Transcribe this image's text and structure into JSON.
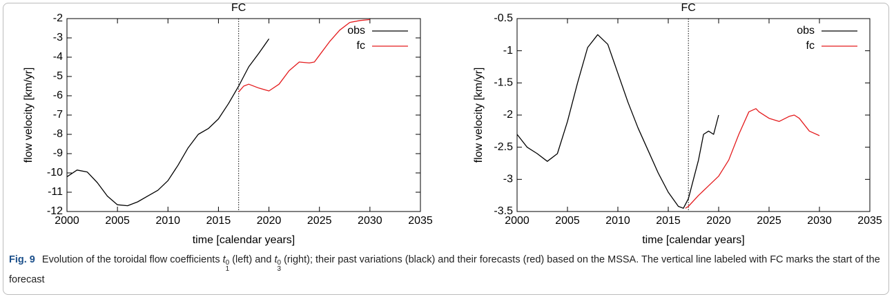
{
  "chart_data": [
    {
      "type": "line",
      "xlabel": "time [calendar years]",
      "ylabel": "flow velocity [km/yr]",
      "annotation": {
        "text": "FC",
        "x": 2017
      },
      "xlim": [
        2000,
        2035
      ],
      "xticks": [
        2000,
        2005,
        2010,
        2015,
        2020,
        2025,
        2030,
        2035
      ],
      "ylim": [
        -12,
        -2
      ],
      "yticks": [
        -12,
        -11,
        -10,
        -9,
        -8,
        -7,
        -6,
        -5,
        -4,
        -3,
        -2
      ],
      "legend": "top-right",
      "series": [
        {
          "name": "obs",
          "color": "#000000",
          "x": [
            2000,
            2001,
            2002,
            2003,
            2004,
            2005,
            2006,
            2007,
            2008,
            2009,
            2010,
            2011,
            2012,
            2013,
            2014,
            2015,
            2016,
            2017,
            2018,
            2019,
            2020
          ],
          "values": [
            -10.2,
            -9.85,
            -9.95,
            -10.5,
            -11.2,
            -11.65,
            -11.7,
            -11.5,
            -11.2,
            -10.9,
            -10.4,
            -9.6,
            -8.7,
            -8.0,
            -7.7,
            -7.2,
            -6.4,
            -5.5,
            -4.5,
            -3.8,
            -3.05
          ]
        },
        {
          "name": "fc",
          "color": "#e41a1c",
          "x": [
            2017,
            2017.5,
            2018,
            2019,
            2020,
            2021,
            2022,
            2023,
            2024,
            2024.5,
            2025,
            2026,
            2027,
            2028,
            2029,
            2030
          ],
          "values": [
            -5.8,
            -5.5,
            -5.4,
            -5.6,
            -5.75,
            -5.4,
            -4.7,
            -4.25,
            -4.3,
            -4.25,
            -3.9,
            -3.2,
            -2.6,
            -2.2,
            -2.1,
            -2.05
          ]
        }
      ]
    },
    {
      "type": "line",
      "xlabel": "time [calendar years]",
      "ylabel": "flow velocity [km/yr]",
      "annotation": {
        "text": "FC",
        "x": 2017
      },
      "xlim": [
        2000,
        2035
      ],
      "xticks": [
        2000,
        2005,
        2010,
        2015,
        2020,
        2025,
        2030,
        2035
      ],
      "ylim": [
        -3.5,
        -0.5
      ],
      "yticks": [
        -3.5,
        -3,
        -2.5,
        -2,
        -1.5,
        -1,
        -0.5
      ],
      "legend": "top-right",
      "series": [
        {
          "name": "obs",
          "color": "#000000",
          "x": [
            2000,
            2001,
            2002,
            2003,
            2004,
            2005,
            2006,
            2007,
            2008,
            2009,
            2010,
            2011,
            2012,
            2013,
            2014,
            2015,
            2016,
            2016.5,
            2017,
            2018,
            2018.5,
            2019,
            2019.5,
            2020
          ],
          "values": [
            -2.3,
            -2.5,
            -2.6,
            -2.72,
            -2.6,
            -2.1,
            -1.5,
            -0.95,
            -0.75,
            -0.9,
            -1.35,
            -1.8,
            -2.2,
            -2.55,
            -2.9,
            -3.2,
            -3.42,
            -3.45,
            -3.3,
            -2.7,
            -2.3,
            -2.25,
            -2.3,
            -2.0
          ]
        },
        {
          "name": "fc",
          "color": "#e41a1c",
          "x": [
            2016.7,
            2017,
            2018,
            2019,
            2020,
            2021,
            2022,
            2023,
            2023.7,
            2024,
            2025,
            2026,
            2027,
            2027.5,
            2028,
            2029,
            2030
          ],
          "values": [
            -3.45,
            -3.42,
            -3.25,
            -3.1,
            -2.95,
            -2.7,
            -2.3,
            -1.95,
            -1.9,
            -1.95,
            -2.05,
            -2.1,
            -2.02,
            -2.0,
            -2.05,
            -2.25,
            -2.32
          ]
        }
      ]
    }
  ],
  "caption": {
    "label": "Fig. 9",
    "parts": [
      "Evolution of the toroidal flow coefficients ",
      {
        "symbol": "t",
        "sub": "1",
        "sup": "0"
      },
      " (left) and ",
      {
        "symbol": "t",
        "sub": "3",
        "sup": "0"
      },
      " (right); their past variations (black) and their forecasts (red) based on the MSSA. The vertical line labeled with FC marks the start of the forecast"
    ]
  }
}
